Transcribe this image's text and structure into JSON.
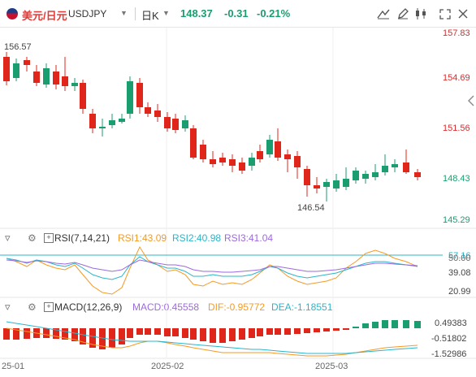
{
  "header": {
    "symbol_cn": "美元/日元",
    "symbol_en": "USDJPY",
    "period": "日K",
    "price": "148.37",
    "change": "-0.31",
    "change_pct": "-0.21%",
    "tools": [
      "line-tool-icon",
      "pencil-icon",
      "candlestick-icon",
      "fullscreen-icon",
      "close-icon"
    ]
  },
  "main_axis": {
    "labels": [
      "157.83",
      "154.69",
      "151.56",
      "148.43",
      "145.29"
    ],
    "high_label": "156.57",
    "low_label": "146.54"
  },
  "rsi": {
    "label": "RSI(7,14,21)",
    "rsi1": "RSI1:43.09",
    "rsi2": "RSI2:40.98",
    "rsi3": "RSI3:41.04",
    "axis": [
      "57.16",
      "50.00",
      "39.08",
      "20.99"
    ],
    "colors": {
      "rsi1": "#f59a23",
      "rsi2": "#2bb5c9",
      "rsi3": "#9c6ade"
    }
  },
  "macd": {
    "label": "MACD(12,26,9)",
    "macd": "MACD:0.45558",
    "dif": "DIF:-0.95772",
    "dea": "DEA:-1.18551",
    "axis": [
      "0.49383",
      "-0.51802",
      "-1.52986"
    ]
  },
  "x_axis": [
    "25-01",
    "2025-02",
    "2025-03"
  ],
  "colors": {
    "up": "#1a9e6f",
    "down": "#e0251b"
  }
}
